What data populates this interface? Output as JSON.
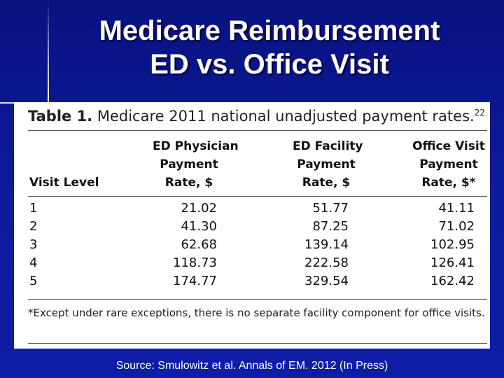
{
  "slide": {
    "title_line1": "Medicare Reimbursement",
    "title_line2": "ED vs. Office Visit",
    "source": "Source: Smulowitz et al. Annals of EM. 2012 (In Press)"
  },
  "table": {
    "caption_label": "Table 1.",
    "caption_text": " Medicare 2011 national unadjusted payment rates.",
    "caption_ref": "22",
    "headers": {
      "visit_level": "Visit Level",
      "ed_physician": [
        "ED Physician",
        "Payment",
        "Rate, $"
      ],
      "ed_facility": [
        "ED Facility",
        "Payment",
        "Rate, $"
      ],
      "office_visit": [
        "Office Visit",
        "Payment",
        "Rate, $*"
      ]
    },
    "rows": [
      {
        "level": "1",
        "ed_physician": "21.02",
        "ed_facility": "51.77",
        "office_visit": "41.11"
      },
      {
        "level": "2",
        "ed_physician": "41.30",
        "ed_facility": "87.25",
        "office_visit": "71.02"
      },
      {
        "level": "3",
        "ed_physician": "62.68",
        "ed_facility": "139.14",
        "office_visit": "102.95"
      },
      {
        "level": "4",
        "ed_physician": "118.73",
        "ed_facility": "222.58",
        "office_visit": "126.41"
      },
      {
        "level": "5",
        "ed_physician": "174.77",
        "ed_facility": "329.54",
        "office_visit": "162.42"
      }
    ],
    "footnote": "*Except under rare exceptions, there is no separate facility component for office visits."
  }
}
